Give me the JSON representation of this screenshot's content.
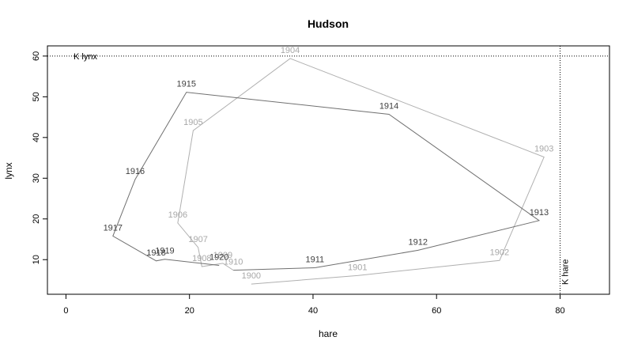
{
  "chart_data": {
    "type": "line",
    "title": "Hudson",
    "xlabel": "hare",
    "ylabel": "lynx",
    "xlim": [
      -3,
      88
    ],
    "ylim": [
      1.5,
      62.5
    ],
    "xticks": [
      0,
      20,
      40,
      60,
      80
    ],
    "yticks": [
      10,
      20,
      30,
      40,
      50,
      60
    ],
    "grid": false,
    "series": [
      {
        "color": "#b0b0b0",
        "points": [
          {
            "label": "1900",
            "x": 30,
            "y": 4
          },
          {
            "label": "1901",
            "x": 47.2,
            "y": 6.1
          },
          {
            "label": "1902",
            "x": 70.2,
            "y": 9.8
          },
          {
            "label": "1903",
            "x": 77.4,
            "y": 35.2
          },
          {
            "label": "1904",
            "x": 36.3,
            "y": 59.4
          },
          {
            "label": "1905",
            "x": 20.6,
            "y": 41.7
          },
          {
            "label": "1906",
            "x": 18.1,
            "y": 19
          },
          {
            "label": "1907",
            "x": 21.4,
            "y": 13
          },
          {
            "label": "1908",
            "x": 22,
            "y": 8.3
          },
          {
            "label": "1909",
            "x": 25.4,
            "y": 9.1
          },
          {
            "label": "1910",
            "x": 27.1,
            "y": 7.4
          }
        ]
      },
      {
        "color": "#707070",
        "points": [
          {
            "label": "1911",
            "x": 40.3,
            "y": 8
          },
          {
            "label": "1912",
            "x": 57,
            "y": 12.3
          },
          {
            "label": "1913",
            "x": 76.6,
            "y": 19.6
          },
          {
            "label": "1914",
            "x": 52.3,
            "y": 45.7
          },
          {
            "label": "1915",
            "x": 19.5,
            "y": 51.1
          },
          {
            "label": "1916",
            "x": 11.2,
            "y": 29.7
          },
          {
            "label": "1917",
            "x": 7.6,
            "y": 15.8
          },
          {
            "label": "1918",
            "x": 14.6,
            "y": 9.7
          },
          {
            "label": "1919",
            "x": 16,
            "y": 10.1
          },
          {
            "label": "1920",
            "x": 24.8,
            "y": 8.6
          }
        ]
      }
    ],
    "reference_lines": [
      {
        "orientation": "horizontal",
        "value": 60,
        "label": "K lynx",
        "style": "dotted"
      },
      {
        "orientation": "vertical",
        "value": 80,
        "label": "K hare",
        "style": "dotted"
      }
    ]
  }
}
